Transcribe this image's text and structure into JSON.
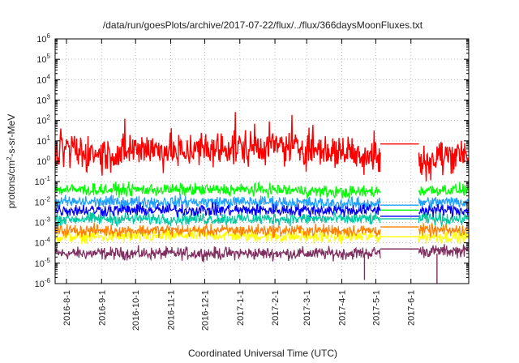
{
  "chart_data": {
    "type": "line",
    "title": "/data/run/goesPlots/archive/2017-07-22/flux/../flux/366daysMoonFluxes.txt",
    "xlabel": "Coordinated Universal Time (UTC)",
    "ylabel": "protons/cm²-s-sr-MeV",
    "ylabel_parts": {
      "pre": "protons/cm",
      "sup": "2",
      "post": "-s-sr-MeV"
    },
    "yscale": "log",
    "ylim": [
      1e-06,
      1000000.0
    ],
    "xlim": [
      "2016-07-22",
      "2017-07-22"
    ],
    "grid": true,
    "x_ticks": [
      "2016-8-1",
      "2016-9-1",
      "2016-10-1",
      "2016-11-1",
      "2016-12-1",
      "2017-1-1",
      "2017-2-1",
      "2017-3-1",
      "2017-4-1",
      "2017-5-1",
      "2017-6-1"
    ],
    "y_ticks": [
      {
        "base": "10",
        "exp": "-6"
      },
      {
        "base": "10",
        "exp": "-5"
      },
      {
        "base": "10",
        "exp": "-4"
      },
      {
        "base": "10",
        "exp": "-3"
      },
      {
        "base": "10",
        "exp": "-2"
      },
      {
        "base": "10",
        "exp": "-1"
      },
      {
        "base": "10",
        "exp": "0"
      },
      {
        "base": "10",
        "exp": "1"
      },
      {
        "base": "10",
        "exp": "2"
      },
      {
        "base": "10",
        "exp": "3"
      },
      {
        "base": "10",
        "exp": "4"
      },
      {
        "base": "10",
        "exp": "5"
      },
      {
        "base": "10",
        "exp": "6"
      }
    ],
    "data_gap": [
      "2017-05-05",
      "2017-06-08"
    ],
    "series": [
      {
        "color": "#7f2f5f",
        "typical": 3e-05,
        "gap_value": 5e-05,
        "x_min": 0.00022,
        "spikes": [
          {
            "x": "2017-04-21",
            "y": 1.5e-06
          },
          {
            "x": "2017-06-24",
            "y": 1e-06
          }
        ],
        "samples": [
          {
            "x": "2016-08-01",
            "y": 3e-05
          },
          {
            "x": "2016-10-01",
            "y": 3e-05
          },
          {
            "x": "2016-12-01",
            "y": 3e-05
          },
          {
            "x": "2017-02-01",
            "y": 3e-05
          },
          {
            "x": "2017-04-01",
            "y": 3e-05
          },
          {
            "x": "2017-07-01",
            "y": 4e-05
          }
        ]
      },
      {
        "color": "#ffff00",
        "typical": 0.0002,
        "gap_value": 0.0002,
        "x_min": 0.0015,
        "samples": [
          {
            "x": "2016-08-01",
            "y": 0.0002
          },
          {
            "x": "2016-10-01",
            "y": 0.0002
          },
          {
            "x": "2016-12-01",
            "y": 0.00025
          },
          {
            "x": "2017-02-01",
            "y": 0.0002
          },
          {
            "x": "2017-04-01",
            "y": 0.0002
          },
          {
            "x": "2017-07-01",
            "y": 0.0002
          }
        ]
      },
      {
        "color": "#ff7f00",
        "typical": 0.0004,
        "gap_value": 0.0006,
        "x_min": 0.003,
        "samples": [
          {
            "x": "2016-08-01",
            "y": 0.0004
          },
          {
            "x": "2016-10-01",
            "y": 0.0004
          },
          {
            "x": "2016-12-01",
            "y": 0.0004
          },
          {
            "x": "2017-02-01",
            "y": 0.0004
          },
          {
            "x": "2017-04-01",
            "y": 0.0004
          },
          {
            "x": "2017-07-01",
            "y": 0.0004
          }
        ]
      },
      {
        "color": "#00c8a0",
        "typical": 0.0015,
        "gap_value": 0.0015,
        "x_min": 0.006,
        "samples": [
          {
            "x": "2016-08-01",
            "y": 0.0015
          },
          {
            "x": "2016-10-01",
            "y": 0.0015
          },
          {
            "x": "2016-12-01",
            "y": 0.0015
          },
          {
            "x": "2017-02-01",
            "y": 0.0015
          },
          {
            "x": "2017-04-01",
            "y": 0.0015
          },
          {
            "x": "2017-07-01",
            "y": 0.0015
          }
        ]
      },
      {
        "color": "#1fa0ff",
        "typical": 0.01,
        "gap_value": 0.007,
        "x_min": 0.018,
        "samples": [
          {
            "x": "2016-08-01",
            "y": 0.01
          },
          {
            "x": "2016-10-01",
            "y": 0.01
          },
          {
            "x": "2016-12-01",
            "y": 0.01
          },
          {
            "x": "2017-02-01",
            "y": 0.01
          },
          {
            "x": "2017-04-01",
            "y": 0.008
          },
          {
            "x": "2017-07-01",
            "y": 0.01
          }
        ]
      },
      {
        "color": "#0000ff",
        "typical": 0.004,
        "gap_value": 0.002,
        "x_min": 0.015,
        "samples": [
          {
            "x": "2016-08-01",
            "y": 0.004
          },
          {
            "x": "2016-10-01",
            "y": 0.004
          },
          {
            "x": "2016-12-01",
            "y": 0.004
          },
          {
            "x": "2017-02-01",
            "y": 0.004
          },
          {
            "x": "2017-04-01",
            "y": 0.004
          },
          {
            "x": "2017-07-01",
            "y": 0.004
          }
        ]
      },
      {
        "color": "#00ff00",
        "typical": 0.04,
        "gap_value": 0.004,
        "x_min": 0.06,
        "samples": [
          {
            "x": "2016-08-01",
            "y": 0.04
          },
          {
            "x": "2016-10-01",
            "y": 0.04
          },
          {
            "x": "2016-12-01",
            "y": 0.04
          },
          {
            "x": "2017-02-01",
            "y": 0.04
          },
          {
            "x": "2017-04-01",
            "y": 0.03
          },
          {
            "x": "2017-07-01",
            "y": 0.04
          }
        ]
      },
      {
        "color": "#ff0000",
        "typical": 3,
        "gap_value": 7,
        "x_min": 3,
        "samples": [
          {
            "x": "2016-08-01",
            "y": 3
          },
          {
            "x": "2016-09-15",
            "y": 2
          },
          {
            "x": "2016-10-01",
            "y": 5
          },
          {
            "x": "2016-11-01",
            "y": 3
          },
          {
            "x": "2016-12-01",
            "y": 3
          },
          {
            "x": "2017-01-01",
            "y": 5
          },
          {
            "x": "2017-02-01",
            "y": 5
          },
          {
            "x": "2017-03-01",
            "y": 4
          },
          {
            "x": "2017-04-01",
            "y": 3
          },
          {
            "x": "2017-06-15",
            "y": 1
          },
          {
            "x": "2017-07-15",
            "y": 3
          }
        ]
      }
    ]
  }
}
